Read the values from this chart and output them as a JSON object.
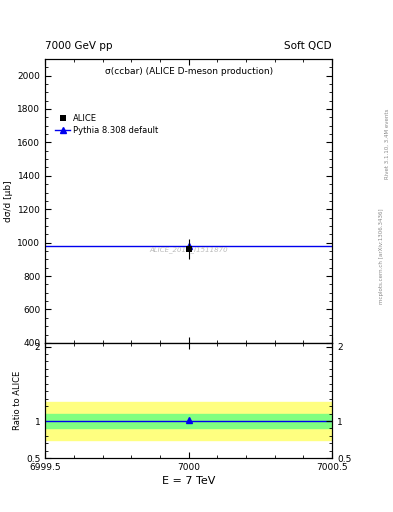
{
  "top_title_left": "7000 GeV pp",
  "top_title_right": "Soft QCD",
  "main_title": "σ(ccbar) (ALICE D-meson production)",
  "ylabel_main": "dσ\n—\nd [μb]",
  "ylabel_ratio": "Ratio to ALICE",
  "xlabel": "E = 7 TeV",
  "watermark": "ALICE_2017_I1511870",
  "right_label_top": "Rivet 3.1.10, 3.4M events",
  "right_label_bot": "mcplots.cern.ch [arXiv:1306.3436]",
  "xlim": [
    6999.5,
    7000.5
  ],
  "ylim_main": [
    400,
    2100
  ],
  "ylim_ratio": [
    0.5,
    2.05
  ],
  "yticks_main": [
    400,
    600,
    800,
    1000,
    1200,
    1400,
    1600,
    1800,
    2000
  ],
  "yticks_ratio": [
    0.5,
    1.0,
    2.0
  ],
  "xticks": [
    6999.5,
    7000.0,
    7000.5
  ],
  "xtick_labels": [
    "6999.5",
    "7000",
    "7000.5"
  ],
  "alice_x": 7000.0,
  "alice_y": 962.0,
  "alice_yerr": 60.0,
  "pythia_line_y": 980.0,
  "pythia_x": 7000.0,
  "pythia_y": 980.0,
  "ratio_pythia_y": 1.02,
  "yellow_band_half": 0.25,
  "green_band_half": 0.1,
  "line_color": "#0000EE",
  "alice_color": "#000000",
  "bg_color": "#FFFFFF"
}
